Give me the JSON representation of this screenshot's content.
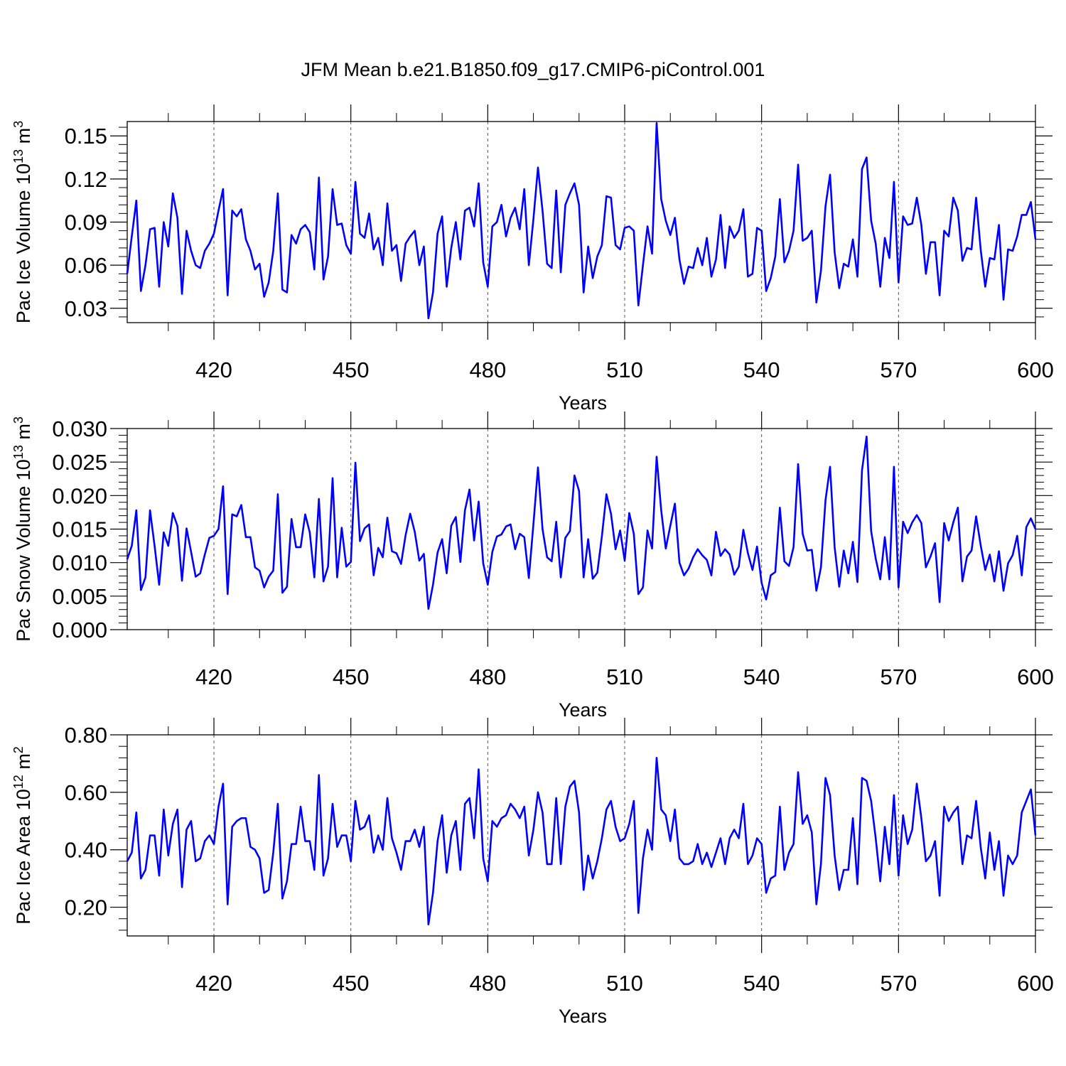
{
  "figure_title": "JFM Mean b.e21.B1850.f09_g17.CMIP6-piControl.001",
  "colors": {
    "line": "#0000ff",
    "axis": "#000000",
    "grid": "#555555"
  },
  "chart_data": [
    {
      "type": "line",
      "ylabel_main": "Pac Ice Volume 10",
      "ylabel_exp": "13",
      "ylabel_unit": " m",
      "ylabel_unit_exp": "3",
      "xlabel": "Years",
      "xlim": [
        401,
        600
      ],
      "ylim": [
        0.02,
        0.16
      ],
      "yticks": [
        0.03,
        0.06,
        0.09,
        0.12,
        0.15
      ],
      "ytick_labels": [
        "0.03",
        "0.06",
        "0.09",
        "0.12",
        "0.15"
      ],
      "xticks": [
        420,
        450,
        480,
        510,
        540,
        570,
        600
      ],
      "xtick_labels": [
        "420",
        "450",
        "480",
        "510",
        "540",
        "570",
        "600"
      ],
      "vgrid": [
        420,
        450,
        480,
        510,
        540,
        570
      ],
      "x_start": 401,
      "values": [
        0.054,
        0.08,
        0.105,
        0.042,
        0.06,
        0.085,
        0.086,
        0.045,
        0.09,
        0.073,
        0.11,
        0.093,
        0.04,
        0.084,
        0.07,
        0.06,
        0.058,
        0.07,
        0.075,
        0.082,
        0.098,
        0.113,
        0.039,
        0.098,
        0.094,
        0.099,
        0.078,
        0.07,
        0.057,
        0.061,
        0.038,
        0.048,
        0.07,
        0.11,
        0.043,
        0.041,
        0.081,
        0.075,
        0.085,
        0.088,
        0.083,
        0.057,
        0.121,
        0.05,
        0.066,
        0.113,
        0.088,
        0.089,
        0.074,
        0.068,
        0.118,
        0.082,
        0.079,
        0.096,
        0.071,
        0.079,
        0.06,
        0.103,
        0.07,
        0.074,
        0.049,
        0.075,
        0.08,
        0.084,
        0.06,
        0.073,
        0.023,
        0.041,
        0.082,
        0.094,
        0.045,
        0.072,
        0.09,
        0.064,
        0.098,
        0.1,
        0.087,
        0.117,
        0.062,
        0.045,
        0.087,
        0.09,
        0.102,
        0.08,
        0.093,
        0.1,
        0.085,
        0.113,
        0.06,
        0.092,
        0.128,
        0.098,
        0.061,
        0.058,
        0.112,
        0.055,
        0.102,
        0.11,
        0.117,
        0.102,
        0.041,
        0.073,
        0.051,
        0.066,
        0.074,
        0.108,
        0.107,
        0.074,
        0.071,
        0.086,
        0.087,
        0.084,
        0.032,
        0.06,
        0.087,
        0.068,
        0.159,
        0.106,
        0.091,
        0.081,
        0.093,
        0.064,
        0.047,
        0.059,
        0.058,
        0.072,
        0.06,
        0.079,
        0.052,
        0.064,
        0.095,
        0.058,
        0.087,
        0.079,
        0.084,
        0.099,
        0.052,
        0.054,
        0.086,
        0.084,
        0.042,
        0.051,
        0.066,
        0.106,
        0.062,
        0.07,
        0.084,
        0.13,
        0.077,
        0.079,
        0.084,
        0.034,
        0.056,
        0.101,
        0.123,
        0.069,
        0.044,
        0.061,
        0.059,
        0.078,
        0.052,
        0.127,
        0.135,
        0.091,
        0.075,
        0.045,
        0.079,
        0.065,
        0.118,
        0.048,
        0.094,
        0.088,
        0.089,
        0.107,
        0.088,
        0.054,
        0.076,
        0.076,
        0.039,
        0.084,
        0.08,
        0.107,
        0.098,
        0.063,
        0.072,
        0.071,
        0.107,
        0.071,
        0.045,
        0.065,
        0.064,
        0.088,
        0.036,
        0.071,
        0.07,
        0.08,
        0.095,
        0.095,
        0.104,
        0.078
      ]
    },
    {
      "type": "line",
      "ylabel_main": "Pac Snow Volume 10",
      "ylabel_exp": "13",
      "ylabel_unit": " m",
      "ylabel_unit_exp": "3",
      "xlabel": "Years",
      "xlim": [
        401,
        600
      ],
      "ylim": [
        0.0,
        0.03
      ],
      "yticks": [
        0.0,
        0.005,
        0.01,
        0.015,
        0.02,
        0.025,
        0.03
      ],
      "ytick_labels": [
        "0.000",
        "0.005",
        "0.010",
        "0.015",
        "0.020",
        "0.025",
        "0.030"
      ],
      "xticks": [
        420,
        450,
        480,
        510,
        540,
        570,
        600
      ],
      "xtick_labels": [
        "420",
        "450",
        "480",
        "510",
        "540",
        "570",
        "600"
      ],
      "vgrid": [
        420,
        450,
        480,
        510,
        540,
        570
      ],
      "x_start": 401,
      "values": [
        0.0105,
        0.0125,
        0.0178,
        0.0059,
        0.0078,
        0.0178,
        0.0125,
        0.0067,
        0.0145,
        0.0125,
        0.0174,
        0.0155,
        0.0073,
        0.0151,
        0.0116,
        0.0079,
        0.0084,
        0.0112,
        0.0137,
        0.014,
        0.015,
        0.0214,
        0.0053,
        0.0172,
        0.0169,
        0.0186,
        0.0138,
        0.0138,
        0.0093,
        0.0088,
        0.0063,
        0.0079,
        0.0088,
        0.0202,
        0.0055,
        0.0064,
        0.0165,
        0.0123,
        0.0123,
        0.0172,
        0.0145,
        0.0078,
        0.0195,
        0.0072,
        0.0094,
        0.0226,
        0.0078,
        0.0152,
        0.0094,
        0.0101,
        0.0249,
        0.0132,
        0.0151,
        0.0157,
        0.0081,
        0.0122,
        0.0108,
        0.0167,
        0.0117,
        0.0114,
        0.0098,
        0.0141,
        0.0173,
        0.0146,
        0.0103,
        0.0113,
        0.0031,
        0.0067,
        0.0115,
        0.0135,
        0.0084,
        0.0155,
        0.0168,
        0.0101,
        0.0178,
        0.0209,
        0.0133,
        0.0191,
        0.0099,
        0.0067,
        0.0116,
        0.0139,
        0.0142,
        0.0154,
        0.0157,
        0.012,
        0.0143,
        0.0138,
        0.0077,
        0.0157,
        0.0242,
        0.015,
        0.0108,
        0.0102,
        0.0161,
        0.0078,
        0.0137,
        0.0147,
        0.023,
        0.0207,
        0.0078,
        0.0135,
        0.0076,
        0.0085,
        0.0139,
        0.0202,
        0.0173,
        0.012,
        0.0148,
        0.0103,
        0.0174,
        0.0143,
        0.0053,
        0.0063,
        0.0148,
        0.0121,
        0.0258,
        0.0178,
        0.0121,
        0.0155,
        0.0188,
        0.01,
        0.0081,
        0.0091,
        0.0108,
        0.012,
        0.0111,
        0.0104,
        0.0081,
        0.0146,
        0.011,
        0.012,
        0.0112,
        0.0082,
        0.0094,
        0.0149,
        0.0114,
        0.0089,
        0.0124,
        0.007,
        0.0045,
        0.0081,
        0.0086,
        0.0182,
        0.0102,
        0.0095,
        0.0123,
        0.0247,
        0.0143,
        0.0118,
        0.0119,
        0.0058,
        0.0093,
        0.0193,
        0.0243,
        0.0123,
        0.0064,
        0.0118,
        0.0084,
        0.0131,
        0.0071,
        0.0238,
        0.0288,
        0.0147,
        0.0106,
        0.0075,
        0.0138,
        0.0075,
        0.0243,
        0.0063,
        0.0161,
        0.0144,
        0.016,
        0.0171,
        0.0159,
        0.0093,
        0.0109,
        0.0129,
        0.0041,
        0.0159,
        0.0133,
        0.016,
        0.0182,
        0.0072,
        0.0109,
        0.0118,
        0.0169,
        0.0126,
        0.0089,
        0.0112,
        0.0072,
        0.0117,
        0.0058,
        0.0099,
        0.0111,
        0.014,
        0.0081,
        0.0153,
        0.0166,
        0.015
      ]
    },
    {
      "type": "line",
      "ylabel_main": "Pac Ice Area 10",
      "ylabel_exp": "12",
      "ylabel_unit": " m",
      "ylabel_unit_exp": "2",
      "xlabel": "Years",
      "xlim": [
        401,
        600
      ],
      "ylim": [
        0.1,
        0.8
      ],
      "yticks": [
        0.2,
        0.4,
        0.6,
        0.8
      ],
      "ytick_labels": [
        "0.20",
        "0.40",
        "0.60",
        "0.80"
      ],
      "xticks": [
        420,
        450,
        480,
        510,
        540,
        570,
        600
      ],
      "xtick_labels": [
        "420",
        "450",
        "480",
        "510",
        "540",
        "570",
        "600"
      ],
      "vgrid": [
        420,
        450,
        480,
        510,
        540,
        570
      ],
      "x_start": 401,
      "values": [
        0.36,
        0.39,
        0.53,
        0.3,
        0.33,
        0.45,
        0.45,
        0.31,
        0.54,
        0.38,
        0.49,
        0.54,
        0.27,
        0.47,
        0.5,
        0.36,
        0.37,
        0.43,
        0.45,
        0.42,
        0.55,
        0.63,
        0.21,
        0.48,
        0.5,
        0.51,
        0.51,
        0.41,
        0.4,
        0.37,
        0.25,
        0.26,
        0.39,
        0.56,
        0.23,
        0.29,
        0.42,
        0.42,
        0.55,
        0.43,
        0.43,
        0.33,
        0.66,
        0.31,
        0.37,
        0.56,
        0.41,
        0.45,
        0.45,
        0.36,
        0.57,
        0.47,
        0.48,
        0.52,
        0.39,
        0.45,
        0.4,
        0.58,
        0.44,
        0.39,
        0.33,
        0.43,
        0.43,
        0.47,
        0.41,
        0.48,
        0.14,
        0.25,
        0.43,
        0.52,
        0.32,
        0.45,
        0.5,
        0.33,
        0.56,
        0.58,
        0.44,
        0.68,
        0.37,
        0.29,
        0.5,
        0.48,
        0.51,
        0.52,
        0.56,
        0.54,
        0.51,
        0.55,
        0.38,
        0.47,
        0.6,
        0.53,
        0.35,
        0.35,
        0.58,
        0.35,
        0.55,
        0.62,
        0.64,
        0.53,
        0.26,
        0.38,
        0.3,
        0.36,
        0.44,
        0.54,
        0.57,
        0.48,
        0.43,
        0.44,
        0.49,
        0.57,
        0.18,
        0.37,
        0.47,
        0.4,
        0.72,
        0.54,
        0.52,
        0.43,
        0.54,
        0.37,
        0.35,
        0.35,
        0.36,
        0.42,
        0.35,
        0.39,
        0.34,
        0.39,
        0.44,
        0.35,
        0.44,
        0.47,
        0.44,
        0.56,
        0.35,
        0.38,
        0.44,
        0.42,
        0.25,
        0.3,
        0.31,
        0.55,
        0.33,
        0.39,
        0.42,
        0.67,
        0.49,
        0.52,
        0.46,
        0.21,
        0.35,
        0.65,
        0.59,
        0.38,
        0.26,
        0.33,
        0.33,
        0.51,
        0.28,
        0.65,
        0.64,
        0.57,
        0.44,
        0.29,
        0.48,
        0.35,
        0.59,
        0.31,
        0.52,
        0.42,
        0.47,
        0.63,
        0.51,
        0.36,
        0.38,
        0.43,
        0.24,
        0.55,
        0.5,
        0.53,
        0.55,
        0.35,
        0.45,
        0.44,
        0.57,
        0.41,
        0.3,
        0.46,
        0.33,
        0.43,
        0.24,
        0.38,
        0.35,
        0.38,
        0.53,
        0.57,
        0.61,
        0.45
      ]
    }
  ]
}
